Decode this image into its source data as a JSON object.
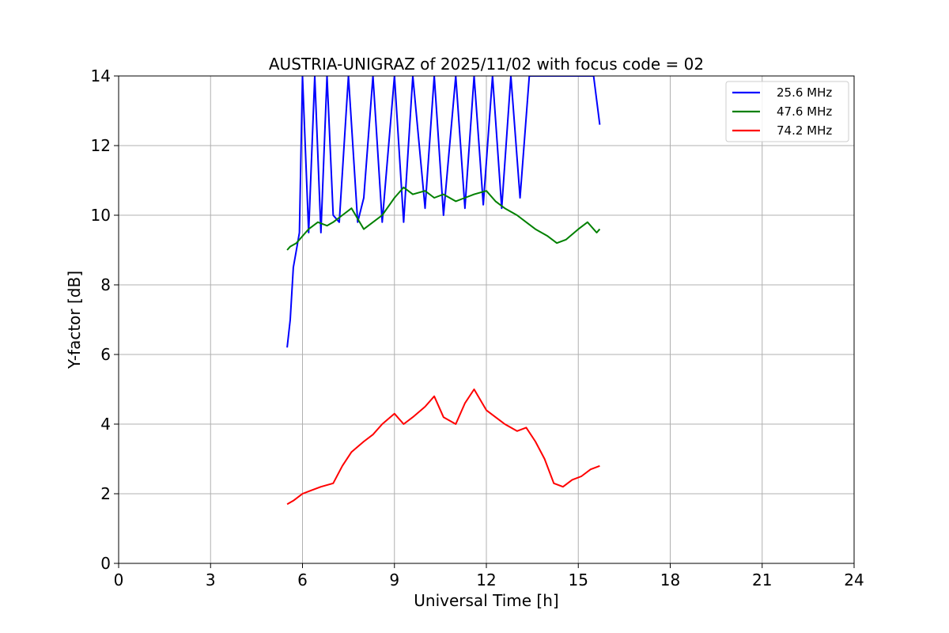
{
  "chart_data": {
    "type": "line",
    "title": "AUSTRIA-UNIGRAZ of 2025/11/02 with focus code = 02",
    "xlabel": "Universal Time [h]",
    "ylabel": "Y-factor [dB]",
    "xlim": [
      0,
      24
    ],
    "ylim": [
      0,
      14
    ],
    "xticks": [
      0,
      3,
      6,
      9,
      12,
      15,
      18,
      21,
      24
    ],
    "yticks": [
      0,
      2,
      4,
      6,
      8,
      10,
      12,
      14
    ],
    "grid": true,
    "legend_position": "top-right",
    "series": [
      {
        "name": "25.6 MHz",
        "color": "#0000ff",
        "x": [
          5.5,
          5.6,
          5.7,
          5.8,
          5.9,
          6.0,
          6.2,
          6.4,
          6.6,
          6.8,
          7.0,
          7.2,
          7.5,
          7.8,
          8.0,
          8.3,
          8.6,
          9.0,
          9.3,
          9.6,
          10.0,
          10.3,
          10.6,
          11.0,
          11.3,
          11.6,
          11.9,
          12.2,
          12.5,
          12.8,
          13.1,
          13.4,
          13.7,
          14.0,
          14.3,
          14.6,
          14.9,
          15.2,
          15.5,
          15.7
        ],
        "y": [
          6.2,
          7.0,
          8.5,
          9.0,
          9.5,
          14.0,
          9.5,
          14.0,
          9.5,
          14.0,
          10.0,
          9.8,
          14.0,
          9.8,
          10.5,
          14.0,
          9.8,
          14.0,
          9.8,
          14.0,
          10.2,
          14.0,
          10.0,
          14.0,
          10.2,
          14.0,
          10.3,
          14.0,
          10.2,
          14.0,
          10.5,
          14.0,
          14.0,
          14.0,
          14.0,
          14.0,
          14.0,
          14.0,
          14.0,
          12.6
        ]
      },
      {
        "name": "47.6 MHz",
        "color": "#008000",
        "x": [
          5.5,
          5.6,
          5.8,
          6.0,
          6.2,
          6.5,
          6.8,
          7.0,
          7.3,
          7.6,
          8.0,
          8.3,
          8.6,
          9.0,
          9.3,
          9.6,
          10.0,
          10.3,
          10.6,
          11.0,
          11.3,
          11.6,
          12.0,
          12.3,
          12.6,
          13.0,
          13.3,
          13.6,
          14.0,
          14.3,
          14.6,
          15.0,
          15.3,
          15.6,
          15.7
        ],
        "y": [
          9.0,
          9.1,
          9.2,
          9.4,
          9.6,
          9.8,
          9.7,
          9.8,
          10.0,
          10.2,
          9.6,
          9.8,
          10.0,
          10.5,
          10.8,
          10.6,
          10.7,
          10.5,
          10.6,
          10.4,
          10.5,
          10.6,
          10.7,
          10.4,
          10.2,
          10.0,
          9.8,
          9.6,
          9.4,
          9.2,
          9.3,
          9.6,
          9.8,
          9.5,
          9.6
        ]
      },
      {
        "name": "74.2 MHz",
        "color": "#ff0000",
        "x": [
          5.5,
          5.7,
          6.0,
          6.3,
          6.6,
          7.0,
          7.3,
          7.6,
          8.0,
          8.3,
          8.6,
          9.0,
          9.3,
          9.6,
          10.0,
          10.3,
          10.6,
          11.0,
          11.3,
          11.6,
          12.0,
          12.3,
          12.6,
          13.0,
          13.3,
          13.6,
          13.9,
          14.2,
          14.5,
          14.8,
          15.1,
          15.4,
          15.7
        ],
        "y": [
          1.7,
          1.8,
          2.0,
          2.1,
          2.2,
          2.3,
          2.8,
          3.2,
          3.5,
          3.7,
          4.0,
          4.3,
          4.0,
          4.2,
          4.5,
          4.8,
          4.2,
          4.0,
          4.6,
          5.0,
          4.4,
          4.2,
          4.0,
          3.8,
          3.9,
          3.5,
          3.0,
          2.3,
          2.2,
          2.4,
          2.5,
          2.7,
          2.8
        ]
      }
    ]
  }
}
